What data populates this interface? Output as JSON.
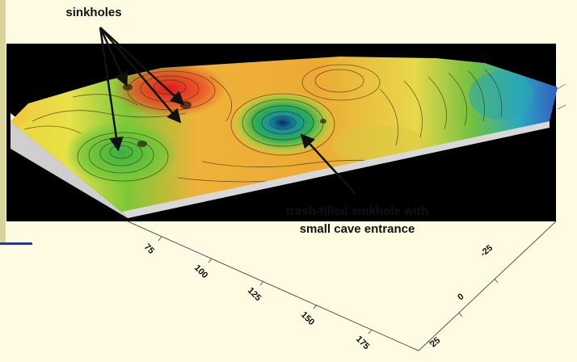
{
  "annotations": {
    "sinkholes_label": "sinkholes",
    "trash_line1": "trash-filled sinkhole with",
    "trash_line2": "small cave entrance"
  },
  "axis_x": {
    "ticks": [
      "75",
      "100",
      "125",
      "150",
      "175"
    ]
  },
  "axis_y": {
    "ticks": [
      "25",
      "0",
      "-25"
    ]
  },
  "colors": {
    "background": "#fefbe2",
    "panel": "#000000",
    "high": "#e8202a",
    "mid": "#f0a030",
    "low": "#30b030",
    "deep": "#3040c0"
  }
}
